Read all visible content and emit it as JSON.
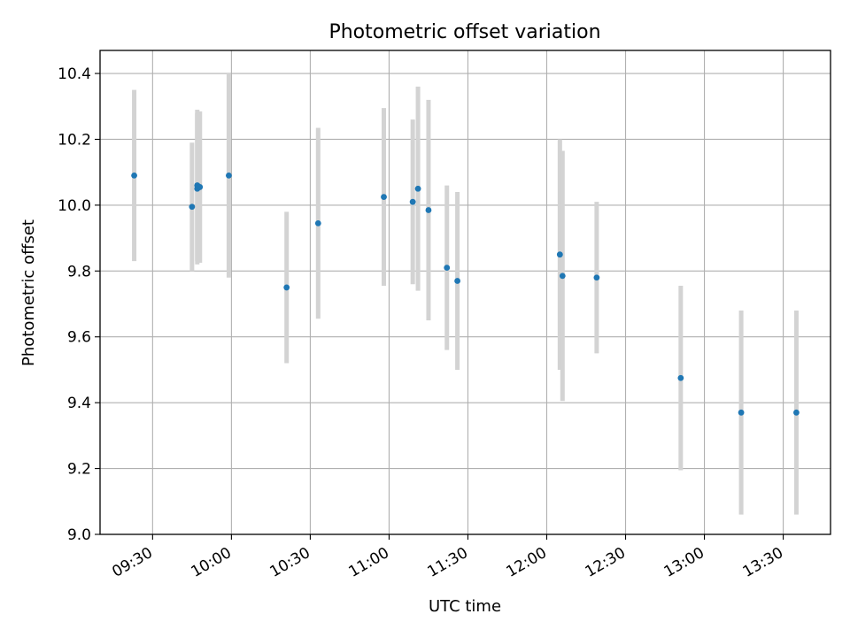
{
  "chart_data": {
    "type": "scatter",
    "title": "Photometric offset variation",
    "xlabel": "UTC time",
    "ylabel": "Photometric offset",
    "xlim": [
      "09:10",
      "13:48"
    ],
    "ylim": [
      9.0,
      10.47
    ],
    "x_ticks": [
      "09:30",
      "10:00",
      "10:30",
      "11:00",
      "11:30",
      "12:00",
      "12:30",
      "13:00",
      "13:30"
    ],
    "y_ticks": [
      "9.0",
      "9.2",
      "9.4",
      "9.6",
      "9.8",
      "10.0",
      "10.2",
      "10.4"
    ],
    "grid": true,
    "errorbar_color": "#d3d3d3",
    "point_color": "#1f77b4",
    "points": [
      {
        "x": "09:23",
        "y": 10.09,
        "yerr": 0.26
      },
      {
        "x": "09:45",
        "y": 9.995,
        "yerr": 0.195
      },
      {
        "x": "09:47",
        "y": 10.06,
        "yerr": 0.23
      },
      {
        "x": "09:47",
        "y": 10.05,
        "yerr": 0.23
      },
      {
        "x": "09:48",
        "y": 10.055,
        "yerr": 0.23
      },
      {
        "x": "09:59",
        "y": 10.09,
        "yerr": 0.31
      },
      {
        "x": "10:21",
        "y": 9.75,
        "yerr": 0.23
      },
      {
        "x": "10:33",
        "y": 9.945,
        "yerr": 0.29
      },
      {
        "x": "10:58",
        "y": 10.025,
        "yerr": 0.27
      },
      {
        "x": "11:09",
        "y": 10.01,
        "yerr": 0.25
      },
      {
        "x": "11:11",
        "y": 10.05,
        "yerr": 0.31
      },
      {
        "x": "11:15",
        "y": 9.985,
        "yerr": 0.335
      },
      {
        "x": "11:22",
        "y": 9.81,
        "yerr": 0.25
      },
      {
        "x": "11:26",
        "y": 9.77,
        "yerr": 0.27
      },
      {
        "x": "12:05",
        "y": 9.85,
        "yerr": 0.35
      },
      {
        "x": "12:06",
        "y": 9.785,
        "yerr": 0.38
      },
      {
        "x": "12:19",
        "y": 9.78,
        "yerr": 0.23
      },
      {
        "x": "12:51",
        "y": 9.475,
        "yerr": 0.28
      },
      {
        "x": "13:14",
        "y": 9.37,
        "yerr": 0.31
      },
      {
        "x": "13:35",
        "y": 9.37,
        "yerr": 0.31
      }
    ]
  }
}
